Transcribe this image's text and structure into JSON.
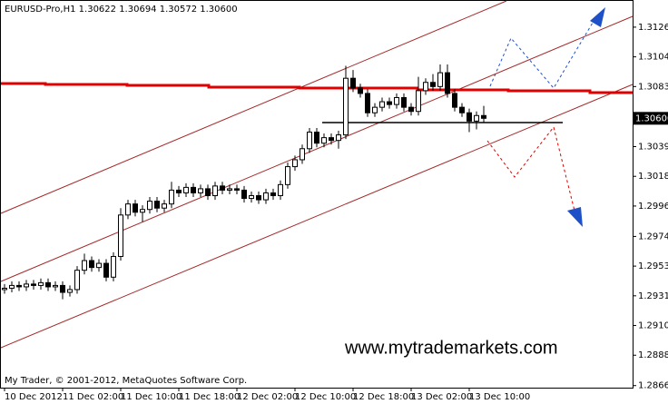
{
  "chart_data": {
    "type": "candlestick",
    "title": "EURUSD-Pro,H1  1.30622 1.30694 1.30572 1.30600",
    "watermark": "www.mytrademarkets.com",
    "copyright": "My Trader, © 2001-2012, MetaQuotes Software Corp.",
    "bull_color": "#ffffff",
    "bear_color": "#000000",
    "outline_color": "#000000",
    "categories": [
      "10 Dec 2012",
      null,
      null,
      null,
      null,
      null,
      null,
      null,
      "11 Dec 02:00",
      null,
      null,
      null,
      null,
      null,
      null,
      null,
      "11 Dec 10:00",
      null,
      null,
      null,
      null,
      null,
      null,
      null,
      "11 Dec 18:00",
      null,
      null,
      null,
      null,
      null,
      null,
      null,
      "12 Dec 02:00",
      null,
      null,
      null,
      null,
      null,
      null,
      null,
      "12 Dec 10:00",
      null,
      null,
      null,
      null,
      null,
      null,
      null,
      "12 Dec 18:00",
      null,
      null,
      null,
      null,
      null,
      null,
      null,
      "13 Dec 02:00",
      null,
      null,
      null,
      null,
      null,
      null,
      null,
      "13 Dec 10:00",
      null,
      null
    ],
    "open": [
      1.2936,
      1.2937,
      1.2939,
      1.2938,
      1.294,
      1.2939,
      1.2941,
      1.2938,
      1.2939,
      1.2934,
      1.2936,
      1.295,
      1.2957,
      1.2952,
      1.2955,
      1.2945,
      1.296,
      1.299,
      1.2998,
      1.2992,
      1.2994,
      1.3,
      1.2995,
      1.2998,
      1.3008,
      1.3006,
      1.301,
      1.3006,
      1.3009,
      1.3004,
      1.3011,
      1.3008,
      1.3009,
      1.3008,
      1.3002,
      1.3004,
      1.3001,
      1.3006,
      1.3004,
      1.3012,
      1.3025,
      1.303,
      1.3038,
      1.305,
      1.3042,
      1.3046,
      1.3044,
      1.3048,
      1.3089,
      1.3082,
      1.3078,
      1.3064,
      1.3068,
      1.3072,
      1.307,
      1.3075,
      1.3068,
      1.3065,
      1.308,
      1.3086,
      1.3083,
      1.3093,
      1.3078,
      1.3068,
      1.3064,
      1.3058,
      1.3062
    ],
    "high": [
      1.294,
      1.2942,
      1.2942,
      1.2943,
      1.2943,
      1.2944,
      1.2944,
      1.2942,
      1.2942,
      1.2939,
      1.2953,
      1.2962,
      1.296,
      1.2958,
      1.2958,
      1.2963,
      1.2995,
      1.3001,
      1.3001,
      1.2997,
      1.3003,
      1.3003,
      1.3001,
      1.3014,
      1.3011,
      1.3013,
      1.3013,
      1.3012,
      1.3012,
      1.3014,
      1.3014,
      1.3012,
      1.3012,
      1.3011,
      1.3007,
      1.3007,
      1.3009,
      1.3009,
      1.3015,
      1.3028,
      1.3033,
      1.3041,
      1.3053,
      1.3053,
      1.3049,
      1.3049,
      1.3051,
      1.3098,
      1.3095,
      1.3085,
      1.3081,
      1.3071,
      1.3075,
      1.3075,
      1.3078,
      1.3078,
      1.3071,
      1.309,
      1.3089,
      1.3092,
      1.3099,
      1.3099,
      1.3081,
      1.3071,
      1.3067,
      1.3065,
      1.3069
    ],
    "low": [
      1.2933,
      1.2934,
      1.2935,
      1.2935,
      1.2936,
      1.2936,
      1.2935,
      1.2935,
      1.2929,
      1.2931,
      1.2933,
      1.2947,
      1.2949,
      1.2949,
      1.2942,
      1.2942,
      1.2957,
      1.2987,
      1.2989,
      1.2985,
      1.2991,
      1.2992,
      1.2992,
      1.2995,
      1.3003,
      1.3003,
      1.3003,
      1.3003,
      1.3001,
      1.3001,
      1.3005,
      1.3005,
      1.3005,
      1.2999,
      1.2999,
      1.2998,
      1.2998,
      1.3001,
      1.3001,
      1.3009,
      1.3022,
      1.3027,
      1.3035,
      1.3039,
      1.3039,
      1.3041,
      1.3038,
      1.3045,
      1.3079,
      1.3075,
      1.3061,
      1.3061,
      1.3065,
      1.3067,
      1.3067,
      1.3065,
      1.3062,
      1.3062,
      1.3077,
      1.308,
      1.308,
      1.3075,
      1.3065,
      1.3061,
      1.305,
      1.3052,
      1.3057
    ],
    "close": [
      1.2937,
      1.2939,
      1.2938,
      1.294,
      1.2939,
      1.2941,
      1.2938,
      1.2939,
      1.2934,
      1.2936,
      1.295,
      1.2957,
      1.2952,
      1.2955,
      1.2945,
      1.296,
      1.299,
      1.2998,
      1.2992,
      1.2994,
      1.3,
      1.2995,
      1.2998,
      1.3008,
      1.3006,
      1.301,
      1.3006,
      1.3009,
      1.3004,
      1.3011,
      1.3008,
      1.3009,
      1.3008,
      1.3002,
      1.3004,
      1.3001,
      1.3006,
      1.3004,
      1.3012,
      1.3025,
      1.303,
      1.3038,
      1.305,
      1.3042,
      1.3046,
      1.3044,
      1.3048,
      1.3089,
      1.3082,
      1.3078,
      1.3064,
      1.3068,
      1.3072,
      1.307,
      1.3075,
      1.3068,
      1.3065,
      1.308,
      1.3086,
      1.3083,
      1.3093,
      1.3078,
      1.3068,
      1.3064,
      1.3058,
      1.3062,
      1.306
    ],
    "ylim": [
      1.2865,
      1.3145
    ],
    "yticks": [
      {
        "value": 1.3126,
        "label": "1.31260"
      },
      {
        "value": 1.31045,
        "label": "1.31045"
      },
      {
        "value": 1.3083,
        "label": "1.30830"
      },
      {
        "value": 1.30395,
        "label": "1.30395"
      },
      {
        "value": 1.3018,
        "label": "1.30180"
      },
      {
        "value": 1.29965,
        "label": "1.29965"
      },
      {
        "value": 1.29745,
        "label": "1.29745"
      },
      {
        "value": 1.2953,
        "label": "1.29530"
      },
      {
        "value": 1.29315,
        "label": "1.29315"
      },
      {
        "value": 1.291,
        "label": "1.29100"
      },
      {
        "value": 1.28885,
        "label": "1.28885"
      },
      {
        "value": 1.28665,
        "label": "1.28665"
      }
    ],
    "current_price": {
      "value": 1.306,
      "label": "1.30600"
    }
  }
}
